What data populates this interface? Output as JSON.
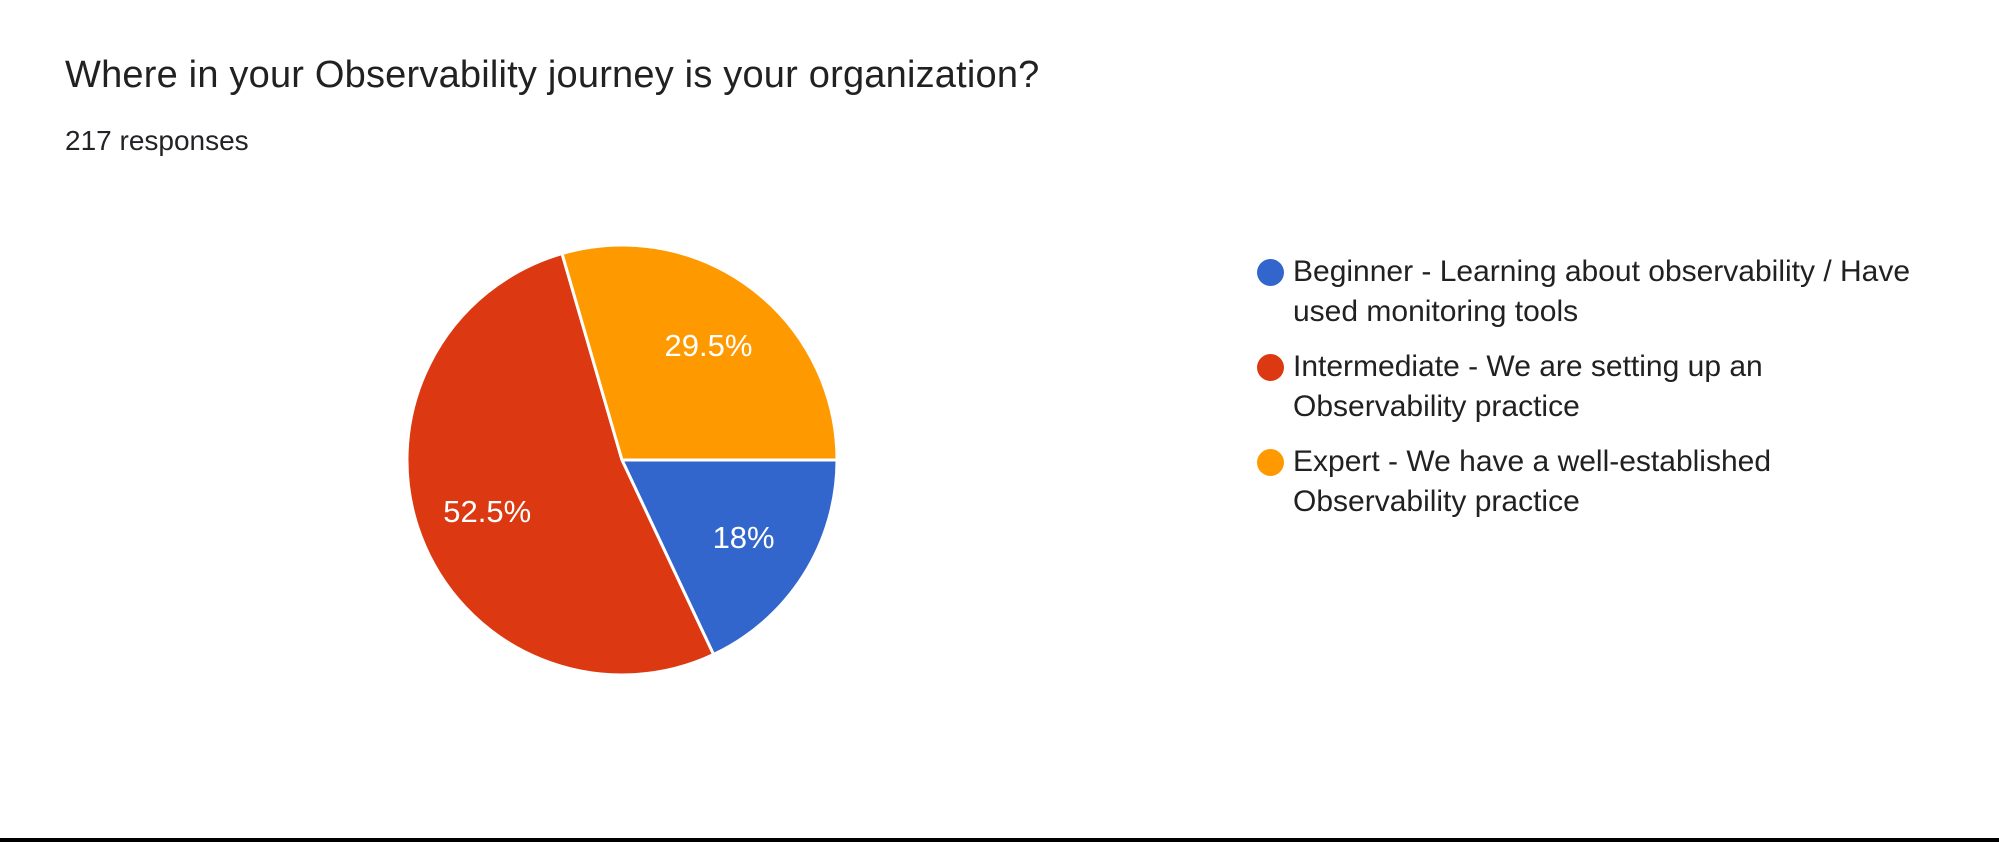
{
  "chart_data": {
    "type": "pie",
    "title": "Where in your Observability journey is your organization?",
    "subtitle": "217 responses",
    "start_angle_deg": 0,
    "direction": "clockwise",
    "legend_position": "right",
    "label_color": "#ffffff",
    "separator_color": "#ffffff",
    "slices": [
      {
        "id": "beginner",
        "legend": "Beginner - Learning about observability / Have used monitoring tools",
        "value": 18,
        "display": "18%",
        "color": "#3366CC"
      },
      {
        "id": "intermediate",
        "legend": "Intermediate - We are setting up an Observability practice",
        "value": 52.5,
        "display": "52.5%",
        "color": "#DC3912"
      },
      {
        "id": "expert",
        "legend": "Expert - We have a well-established Observability practice",
        "value": 29.5,
        "display": "29.5%",
        "color": "#FF9900"
      }
    ]
  }
}
